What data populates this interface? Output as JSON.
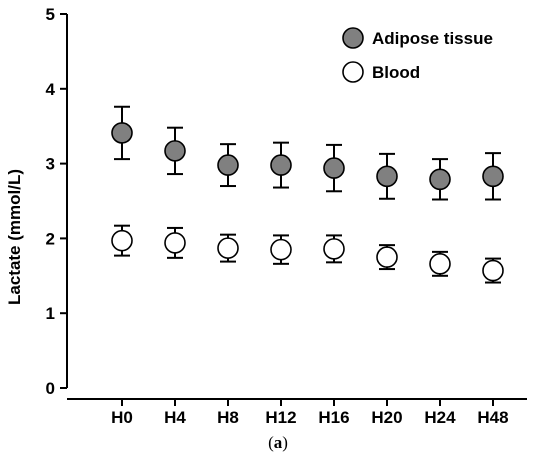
{
  "caption": {
    "open": "(",
    "letter": "a",
    "close": ")"
  },
  "chart_data": {
    "type": "scatter",
    "title": "",
    "xlabel": "",
    "ylabel": "Lactate (mmol/L)",
    "categories": [
      "H0",
      "H4",
      "H8",
      "H12",
      "H16",
      "H20",
      "H24",
      "H48"
    ],
    "ylim": [
      0,
      5
    ],
    "yticks": [
      "0",
      "1",
      "2",
      "3",
      "4",
      "5"
    ],
    "grid": false,
    "legend_position": "top-right",
    "series": [
      {
        "name": "Adipose tissue",
        "marker": "filled-circle",
        "color": "#808080",
        "values": [
          3.41,
          3.17,
          2.98,
          2.98,
          2.94,
          2.83,
          2.79,
          2.83
        ],
        "error": [
          0.35,
          0.31,
          0.28,
          0.3,
          0.31,
          0.3,
          0.27,
          0.31
        ]
      },
      {
        "name": "Blood",
        "marker": "open-circle",
        "color": "#ffffff",
        "values": [
          1.97,
          1.94,
          1.87,
          1.85,
          1.86,
          1.75,
          1.66,
          1.57
        ],
        "error": [
          0.2,
          0.2,
          0.18,
          0.19,
          0.18,
          0.16,
          0.16,
          0.16
        ]
      }
    ]
  }
}
